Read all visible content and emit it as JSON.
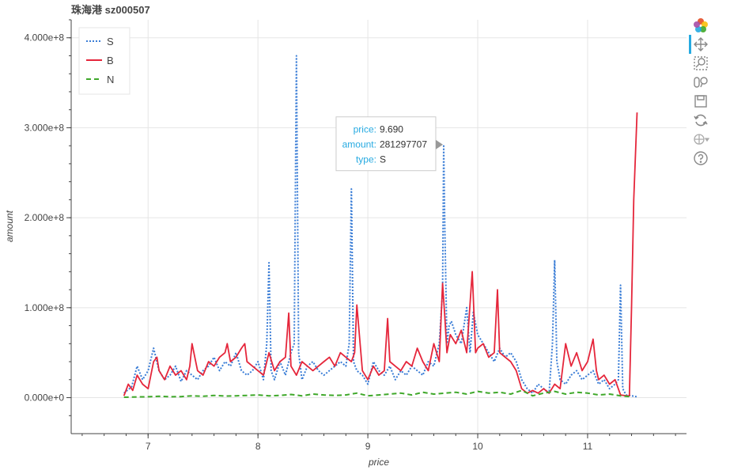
{
  "chart_data": {
    "type": "line",
    "title": "珠海港 sz000507",
    "xlabel": "price",
    "ylabel": "amount",
    "xlim": [
      6.3,
      11.9
    ],
    "ylim": [
      -40000000,
      420000000
    ],
    "xticks": [
      7,
      8,
      9,
      10,
      11
    ],
    "xtick_labels": [
      "7",
      "8",
      "9",
      "10",
      "11"
    ],
    "yticks": [
      0,
      100000000,
      200000000,
      300000000,
      400000000
    ],
    "ytick_labels": [
      "0.000e+0",
      "1.000e+8",
      "2.000e+8",
      "3.000e+8",
      "4.000e+8"
    ],
    "grid": true,
    "legend_position": "top-left",
    "series": [
      {
        "name": "S",
        "color": "#3a7dd6",
        "dash": "dotted",
        "x": [
          6.78,
          6.85,
          6.9,
          6.95,
          7.0,
          7.05,
          7.1,
          7.15,
          7.2,
          7.25,
          7.3,
          7.35,
          7.4,
          7.45,
          7.5,
          7.55,
          7.6,
          7.65,
          7.7,
          7.75,
          7.8,
          7.85,
          7.9,
          7.95,
          8.0,
          8.05,
          8.08,
          8.1,
          8.12,
          8.15,
          8.2,
          8.25,
          8.3,
          8.33,
          8.35,
          8.37,
          8.4,
          8.45,
          8.5,
          8.55,
          8.6,
          8.65,
          8.7,
          8.75,
          8.8,
          8.83,
          8.85,
          8.87,
          8.9,
          8.95,
          9.0,
          9.05,
          9.1,
          9.15,
          9.2,
          9.25,
          9.3,
          9.35,
          9.4,
          9.45,
          9.5,
          9.55,
          9.6,
          9.65,
          9.68,
          9.69,
          9.7,
          9.72,
          9.74,
          9.76,
          9.8,
          9.85,
          9.9,
          9.93,
          9.96,
          10.0,
          10.05,
          10.1,
          10.15,
          10.2,
          10.25,
          10.3,
          10.35,
          10.4,
          10.45,
          10.5,
          10.55,
          10.6,
          10.65,
          10.68,
          10.7,
          10.72,
          10.75,
          10.8,
          10.85,
          10.9,
          10.95,
          11.0,
          11.05,
          11.1,
          11.15,
          11.2,
          11.25,
          11.28,
          11.3,
          11.32,
          11.35,
          11.4,
          11.45
        ],
        "y": [
          5000000,
          12000000,
          35000000,
          20000000,
          30000000,
          55000000,
          30000000,
          20000000,
          25000000,
          35000000,
          18000000,
          30000000,
          25000000,
          20000000,
          30000000,
          35000000,
          45000000,
          30000000,
          40000000,
          35000000,
          50000000,
          30000000,
          25000000,
          30000000,
          40000000,
          20000000,
          60000000,
          150000000,
          30000000,
          20000000,
          40000000,
          25000000,
          50000000,
          60000000,
          380000000,
          50000000,
          20000000,
          35000000,
          40000000,
          30000000,
          25000000,
          30000000,
          35000000,
          40000000,
          35000000,
          60000000,
          232000000,
          40000000,
          30000000,
          25000000,
          15000000,
          40000000,
          30000000,
          25000000,
          35000000,
          20000000,
          30000000,
          25000000,
          35000000,
          30000000,
          25000000,
          40000000,
          35000000,
          60000000,
          120000000,
          281297707,
          190000000,
          60000000,
          80000000,
          85000000,
          70000000,
          60000000,
          100000000,
          50000000,
          95000000,
          70000000,
          60000000,
          50000000,
          40000000,
          55000000,
          45000000,
          50000000,
          40000000,
          20000000,
          10000000,
          5000000,
          15000000,
          10000000,
          5000000,
          60000000,
          153000000,
          40000000,
          20000000,
          15000000,
          25000000,
          30000000,
          20000000,
          25000000,
          30000000,
          15000000,
          20000000,
          10000000,
          15000000,
          20000000,
          125000000,
          10000000,
          3000000,
          2000000,
          1000000
        ]
      },
      {
        "name": "B",
        "color": "#e5263b",
        "dash": "solid",
        "x": [
          6.78,
          6.82,
          6.86,
          6.9,
          6.95,
          7.0,
          7.05,
          7.08,
          7.1,
          7.15,
          7.2,
          7.25,
          7.3,
          7.35,
          7.38,
          7.4,
          7.45,
          7.5,
          7.55,
          7.6,
          7.65,
          7.7,
          7.72,
          7.75,
          7.8,
          7.85,
          7.88,
          7.9,
          7.95,
          8.0,
          8.05,
          8.1,
          8.15,
          8.2,
          8.25,
          8.28,
          8.3,
          8.35,
          8.4,
          8.45,
          8.5,
          8.55,
          8.6,
          8.65,
          8.7,
          8.75,
          8.8,
          8.85,
          8.88,
          8.9,
          8.95,
          9.0,
          9.05,
          9.1,
          9.15,
          9.18,
          9.2,
          9.25,
          9.3,
          9.35,
          9.4,
          9.45,
          9.5,
          9.55,
          9.6,
          9.65,
          9.68,
          9.7,
          9.72,
          9.75,
          9.8,
          9.85,
          9.9,
          9.95,
          9.98,
          10.0,
          10.05,
          10.1,
          10.15,
          10.18,
          10.2,
          10.25,
          10.3,
          10.35,
          10.4,
          10.45,
          10.5,
          10.55,
          10.6,
          10.65,
          10.7,
          10.75,
          10.8,
          10.85,
          10.9,
          10.95,
          11.0,
          11.05,
          11.08,
          11.1,
          11.15,
          11.2,
          11.25,
          11.3,
          11.35,
          11.38,
          11.4,
          11.42,
          11.45
        ],
        "y": [
          2000000,
          15000000,
          8000000,
          25000000,
          15000000,
          10000000,
          40000000,
          45000000,
          30000000,
          20000000,
          35000000,
          25000000,
          30000000,
          20000000,
          35000000,
          60000000,
          30000000,
          25000000,
          40000000,
          35000000,
          45000000,
          50000000,
          60000000,
          40000000,
          45000000,
          55000000,
          60000000,
          40000000,
          35000000,
          30000000,
          25000000,
          50000000,
          30000000,
          40000000,
          45000000,
          94000000,
          35000000,
          25000000,
          40000000,
          35000000,
          30000000,
          35000000,
          40000000,
          45000000,
          35000000,
          50000000,
          45000000,
          40000000,
          50000000,
          103000000,
          30000000,
          20000000,
          35000000,
          25000000,
          30000000,
          88000000,
          40000000,
          35000000,
          30000000,
          40000000,
          35000000,
          55000000,
          40000000,
          30000000,
          60000000,
          40000000,
          127000000,
          90000000,
          50000000,
          70000000,
          60000000,
          75000000,
          50000000,
          140000000,
          50000000,
          55000000,
          60000000,
          45000000,
          50000000,
          120000000,
          50000000,
          45000000,
          40000000,
          30000000,
          10000000,
          5000000,
          8000000,
          5000000,
          10000000,
          5000000,
          15000000,
          10000000,
          60000000,
          35000000,
          50000000,
          30000000,
          40000000,
          65000000,
          30000000,
          20000000,
          25000000,
          15000000,
          20000000,
          3000000,
          2000000,
          2000000,
          100000000,
          220000000,
          317000000
        ]
      },
      {
        "name": "N",
        "color": "#3fa82a",
        "dash": "dashed",
        "x": [
          6.78,
          6.9,
          7.0,
          7.1,
          7.2,
          7.3,
          7.4,
          7.5,
          7.6,
          7.7,
          7.8,
          7.9,
          8.0,
          8.1,
          8.2,
          8.3,
          8.4,
          8.5,
          8.6,
          8.7,
          8.8,
          8.9,
          9.0,
          9.1,
          9.2,
          9.3,
          9.4,
          9.5,
          9.6,
          9.7,
          9.8,
          9.9,
          10.0,
          10.1,
          10.2,
          10.3,
          10.4,
          10.5,
          10.6,
          10.7,
          10.8,
          10.9,
          11.0,
          11.1,
          11.2,
          11.3,
          11.4
        ],
        "y": [
          500000,
          800000,
          1000000,
          1500000,
          1000000,
          1200000,
          2000000,
          1500000,
          2500000,
          1800000,
          2000000,
          2500000,
          3000000,
          2000000,
          2500000,
          3500000,
          2000000,
          4000000,
          3000000,
          2500000,
          3000000,
          5000000,
          2000000,
          3000000,
          4000000,
          5000000,
          3000000,
          6000000,
          4000000,
          5000000,
          6000000,
          4000000,
          7000000,
          5000000,
          6000000,
          4000000,
          8000000,
          2000000,
          5000000,
          7000000,
          4000000,
          6000000,
          5000000,
          3000000,
          4000000,
          2000000,
          1000000
        ]
      }
    ],
    "tooltip": {
      "rows": [
        {
          "key": "price:",
          "value": "9.690"
        },
        {
          "key": "amount:",
          "value": "281297707"
        },
        {
          "key": "type:",
          "value": "S"
        }
      ],
      "anchor_x": 9.69,
      "anchor_y": 281297707
    }
  },
  "toolbar": {
    "tools": [
      "bokeh-logo-icon",
      "pan-icon",
      "box-zoom-icon",
      "wheel-zoom-icon",
      "save-icon",
      "reset-icon",
      "hover-icon",
      "help-icon"
    ]
  }
}
